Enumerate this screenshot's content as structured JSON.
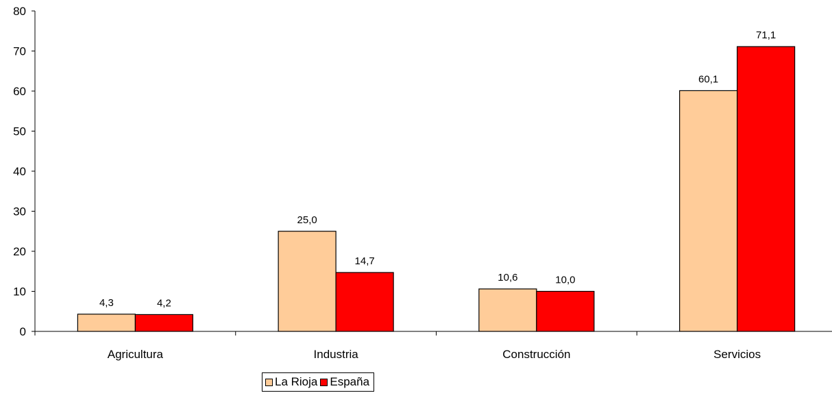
{
  "chart_data": {
    "type": "bar",
    "categories": [
      "Agricultura",
      "Industria",
      "Construcción",
      "Servicios"
    ],
    "series": [
      {
        "name": "La Rioja",
        "values": [
          4.3,
          25.0,
          10.6,
          60.1
        ],
        "labels": [
          "4,3",
          "25,0",
          "10,6",
          "60,1"
        ],
        "color": "#FFCC99"
      },
      {
        "name": "España",
        "values": [
          4.2,
          14.7,
          10.0,
          71.1
        ],
        "labels": [
          "4,2",
          "14,7",
          "10,0",
          "71,1"
        ],
        "color": "#FF0000"
      }
    ],
    "ylim": [
      0,
      80
    ],
    "yticks": [
      0,
      10,
      20,
      30,
      40,
      50,
      60,
      70,
      80
    ],
    "title": "",
    "xlabel": "",
    "ylabel": "",
    "grid": false,
    "legend_position": "bottom"
  }
}
